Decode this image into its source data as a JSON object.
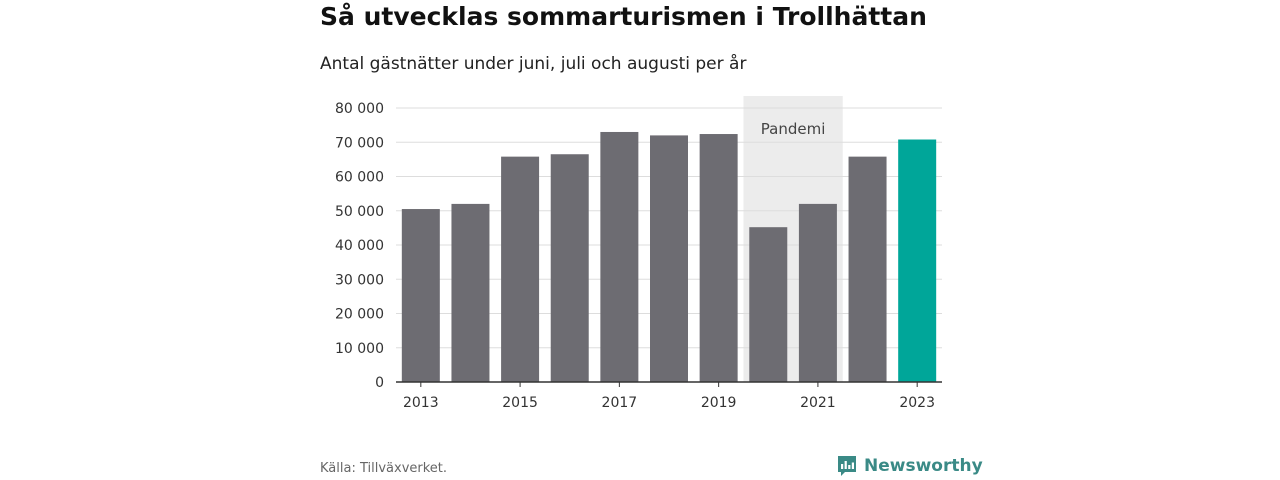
{
  "title": "Så utvecklas sommarturismen i Trollhättan",
  "subtitle": "Antal gästnätter under juni, juli och augusti per år",
  "source": "Källa: Tillväxverket.",
  "brand": "Newsworthy",
  "chart_data": {
    "type": "bar",
    "categories": [
      "2013",
      "2014",
      "2015",
      "2016",
      "2017",
      "2018",
      "2019",
      "2020",
      "2021",
      "2022",
      "2023"
    ],
    "values": [
      50500,
      52000,
      65800,
      66500,
      73000,
      72000,
      72400,
      45200,
      52000,
      65800,
      70800
    ],
    "x_tick_labels": [
      "2013",
      "2015",
      "2017",
      "2019",
      "2021",
      "2023"
    ],
    "ylim": [
      0,
      80000
    ],
    "y_ticks": [
      0,
      10000,
      20000,
      30000,
      40000,
      50000,
      60000,
      70000,
      80000
    ],
    "y_tick_labels": [
      "0",
      "10 000",
      "20 000",
      "30 000",
      "40 000",
      "50 000",
      "60 000",
      "70 000",
      "80 000"
    ],
    "grid": true,
    "colors": {
      "bar": "#6d6c72",
      "highlight": "#00a699",
      "shade": "#ececec",
      "grid": "#dddddd",
      "axis": "#333333"
    },
    "highlight_category": "2023",
    "annotation": {
      "label": "Pandemi",
      "from": "2020",
      "to": "2021"
    }
  }
}
